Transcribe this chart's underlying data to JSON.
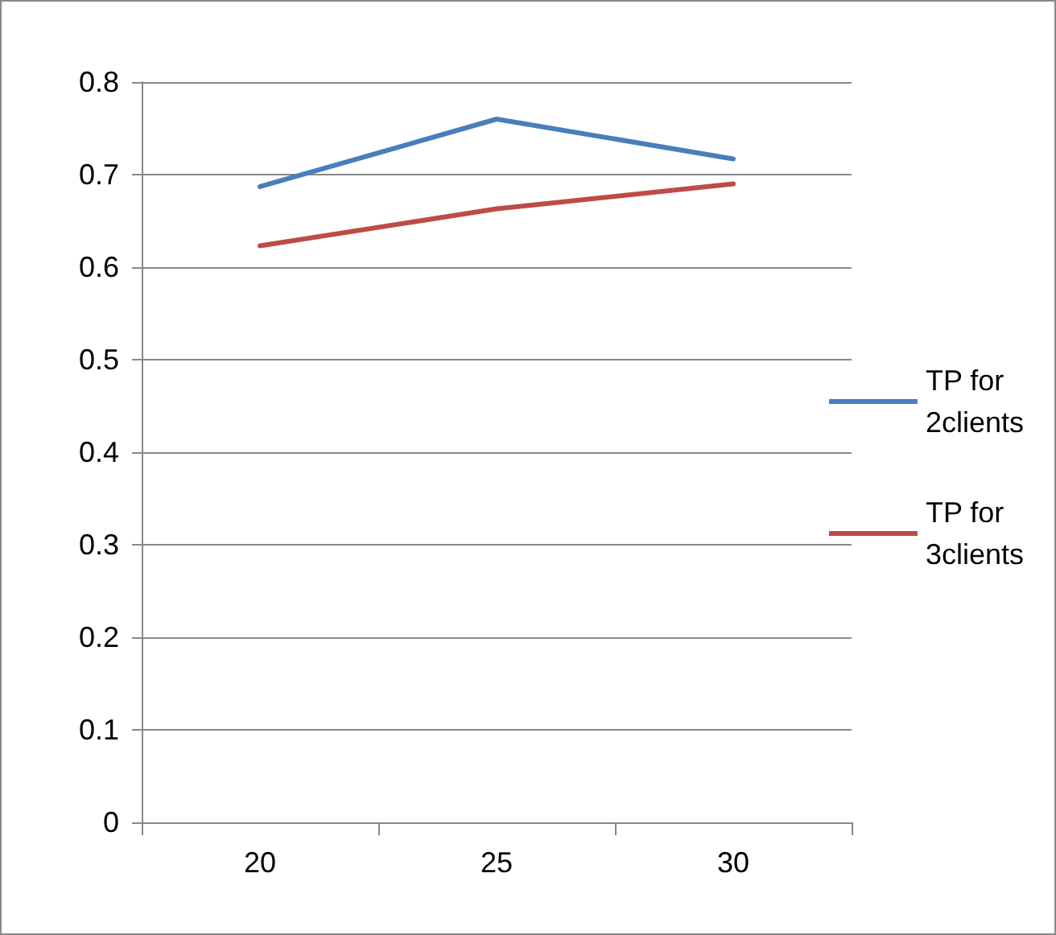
{
  "chart_data": {
    "type": "line",
    "categories": [
      "20",
      "25",
      "30"
    ],
    "series": [
      {
        "name": "TP for 2clients",
        "color": "#4a7ebb",
        "values": [
          0.687,
          0.76,
          0.717
        ]
      },
      {
        "name": "TP for 3clients",
        "color": "#be4b48",
        "values": [
          0.623,
          0.663,
          0.69
        ]
      }
    ],
    "ylim": [
      0,
      0.8
    ],
    "yticks": [
      0,
      0.1,
      0.2,
      0.3,
      0.4,
      0.5,
      0.6,
      0.7,
      0.8
    ],
    "grid": "y",
    "legend": "right",
    "marker": "none",
    "line_style": "solid"
  }
}
